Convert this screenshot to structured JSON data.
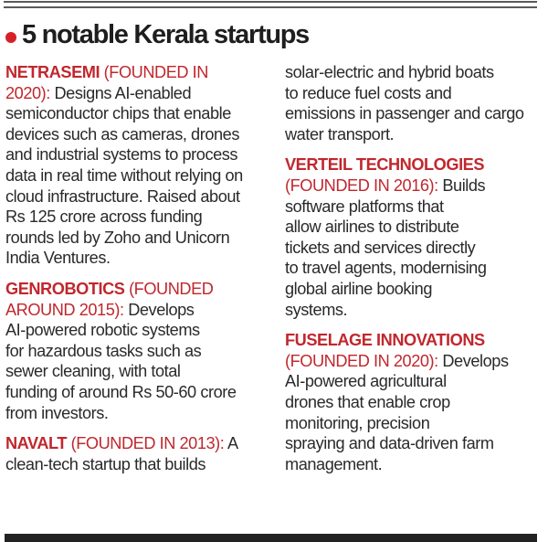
{
  "header": {
    "title": "5 notable Kerala startups",
    "bullet_color": "#d62028"
  },
  "accent_color": "#c1272d",
  "columns": {
    "left": [
      {
        "name": "NETRASEMI",
        "founded_lines": [
          "(FOUNDED IN",
          "2020):"
        ],
        "lines": [
          "Designs AI-enabled",
          "semiconductor chips that enable",
          "devices such as cameras, drones",
          "and industrial systems to process",
          "data in real time without relying on",
          "cloud infrastructure. Raised about",
          "Rs 125 crore across funding",
          "rounds led by Zoho and Unicorn",
          "India Ventures."
        ]
      },
      {
        "name": "GENROBOTICS",
        "founded_lines": [
          "(FOUNDED",
          "AROUND 2015):"
        ],
        "lines": [
          "Develops",
          "AI-powered robotic systems",
          "for hazardous tasks such as",
          "sewer cleaning, with total",
          "funding of around Rs 50-60 crore",
          "from investors."
        ]
      },
      {
        "name": "NAVALT",
        "founded_lines": [
          "(FOUNDED IN 2013):"
        ],
        "lines": [
          "A",
          "clean-tech startup that builds"
        ]
      }
    ],
    "right": [
      {
        "continuation_lines": [
          "solar-electric and hybrid boats",
          "to reduce fuel costs and",
          "emissions in passenger and cargo",
          "water transport."
        ]
      },
      {
        "name": "VERTEIL TECHNOLOGIES",
        "founded_lines": [
          "(FOUNDED IN 2016):"
        ],
        "lines": [
          "Builds",
          "software platforms that",
          "allow airlines to distribute",
          "tickets and services directly",
          "to travel agents, modernising",
          "global airline booking",
          "systems."
        ]
      },
      {
        "name": "FUSELAGE INNOVATIONS",
        "founded_lines": [
          "(FOUNDED IN 2020):"
        ],
        "lines": [
          "Develops",
          "AI-powered agricultural",
          "drones that enable crop",
          "monitoring, precision",
          "spraying and data-driven farm",
          "management."
        ]
      }
    ]
  }
}
